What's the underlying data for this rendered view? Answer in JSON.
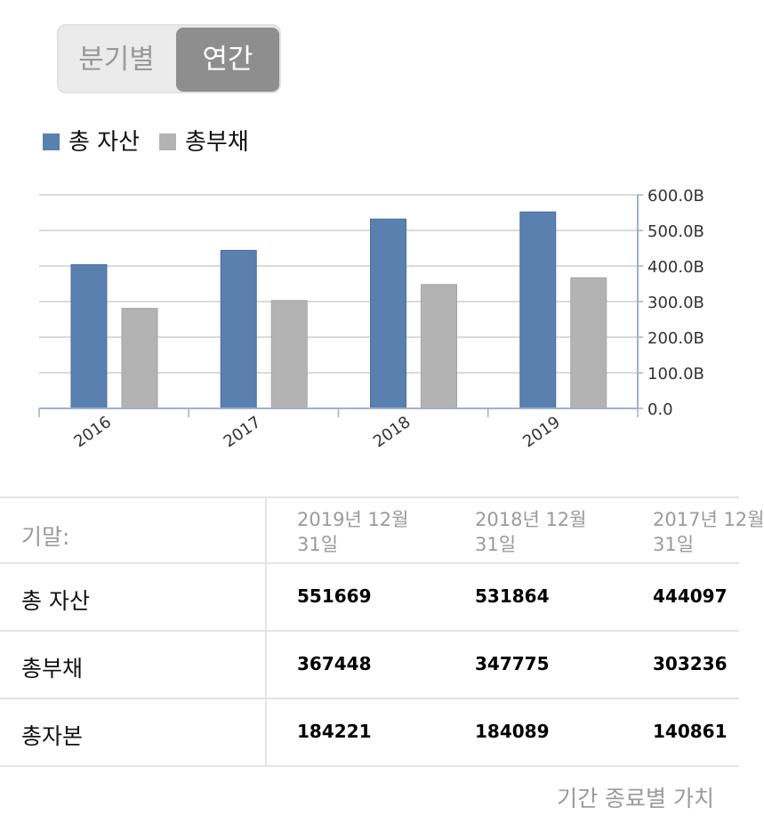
{
  "toggle": {
    "quarterly": "분기별",
    "annual": "연간",
    "selected": "annual"
  },
  "legend": [
    {
      "label": "총 자산",
      "color": "#5a80b0"
    },
    {
      "label": "총부채",
      "color": "#b3b3b3"
    }
  ],
  "chart_data": {
    "type": "bar",
    "categories": [
      "2016",
      "2017",
      "2018",
      "2019"
    ],
    "series": [
      {
        "name": "총 자산",
        "color": "#5a80b0",
        "values": [
          404,
          444,
          532,
          552
        ]
      },
      {
        "name": "총부채",
        "color": "#b3b3b3",
        "values": [
          281,
          303,
          348,
          367
        ]
      }
    ],
    "ylim": [
      0,
      600
    ],
    "yticks": [
      "0.0",
      "100.0B",
      "200.0B",
      "300.0B",
      "400.0B",
      "500.0B",
      "600.0B"
    ],
    "ytick_values": [
      0,
      100,
      200,
      300,
      400,
      500,
      600
    ],
    "y_axis_side": "right",
    "grid": true,
    "legend_position": "top-left"
  },
  "table": {
    "header_label": "기말:",
    "columns": [
      {
        "line1": "2019년 12월",
        "line2": "31일"
      },
      {
        "line1": "2018년 12월",
        "line2": "31일"
      },
      {
        "line1": "2017년 12월",
        "line2": "31일"
      }
    ],
    "rows": [
      {
        "label": "총 자산",
        "values": [
          "551669",
          "531864",
          "444097"
        ]
      },
      {
        "label": "총부채",
        "values": [
          "367448",
          "347775",
          "303236"
        ]
      },
      {
        "label": "총자본",
        "values": [
          "184221",
          "184089",
          "140861"
        ]
      }
    ]
  },
  "footer": "기간 종료별 가치"
}
